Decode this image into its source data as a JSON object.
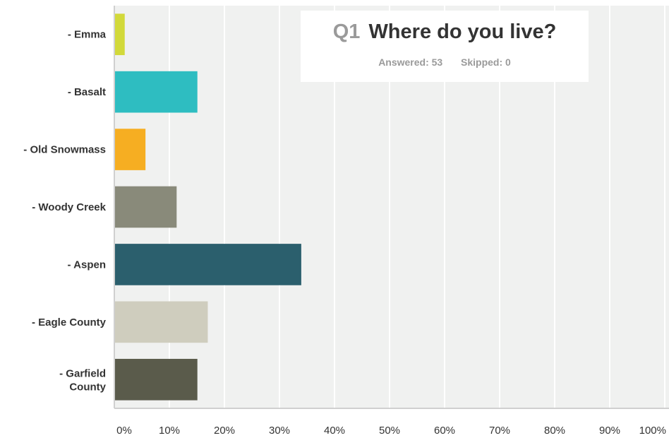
{
  "header": {
    "question_number": "Q1",
    "question_text": "Where do you live?",
    "answered_label": "Answered: 53",
    "skipped_label": "Skipped: 0"
  },
  "chart_data": {
    "type": "bar",
    "orientation": "horizontal",
    "categories": [
      "- Emma",
      "- Basalt",
      "- Old Snowmass",
      "- Woody Creek",
      "- Aspen",
      "- Eagle County",
      "- Garfield County"
    ],
    "values": [
      1.89,
      15.09,
      5.66,
      11.32,
      33.96,
      16.98,
      15.09
    ],
    "colors": [
      "#d2d93a",
      "#2ebdc1",
      "#f6ae22",
      "#898a7a",
      "#2b5f6d",
      "#cfcdbe",
      "#5a5b4b"
    ],
    "xlim": [
      0,
      100
    ],
    "x_ticks": [
      "0%",
      "10%",
      "20%",
      "30%",
      "40%",
      "50%",
      "60%",
      "70%",
      "80%",
      "90%",
      "100%"
    ],
    "grid": true,
    "title": "Where do you live?",
    "xlabel": "",
    "ylabel": ""
  }
}
